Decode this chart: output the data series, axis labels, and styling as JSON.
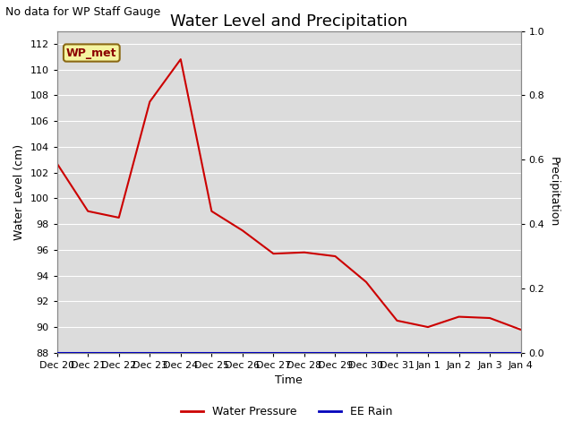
{
  "title": "Water Level and Precipitation",
  "subtitle": "No data for WP Staff Gauge",
  "xlabel": "Time",
  "ylabel_left": "Water Level (cm)",
  "ylabel_right": "Precipitation",
  "fig_facecolor": "#ffffff",
  "plot_bg_color": "#dcdcdc",
  "x_labels": [
    "Dec 20",
    "Dec 21",
    "Dec 22",
    "Dec 23",
    "Dec 24",
    "Dec 25",
    "Dec 26",
    "Dec 27",
    "Dec 28",
    "Dec 29",
    "Dec 30",
    "Dec 31",
    "Jan 1",
    "Jan 2",
    "Jan 3",
    "Jan 4"
  ],
  "x_values": [
    0,
    1,
    2,
    3,
    4,
    5,
    6,
    7,
    8,
    9,
    10,
    11,
    12,
    13,
    14,
    15
  ],
  "water_pressure_y": [
    102.7,
    99.0,
    98.5,
    107.5,
    110.8,
    99.0,
    97.5,
    95.7,
    95.8,
    95.5,
    93.5,
    90.5,
    90.0,
    90.8,
    90.7,
    89.8
  ],
  "ee_rain_y": [
    0,
    0,
    0,
    0,
    0,
    0,
    0,
    0,
    0,
    0,
    0,
    0,
    0,
    0,
    0,
    0
  ],
  "ylim_left": [
    88,
    113
  ],
  "ylim_right": [
    0.0,
    1.0
  ],
  "yticks_left": [
    88,
    90,
    92,
    94,
    96,
    98,
    100,
    102,
    104,
    106,
    108,
    110,
    112
  ],
  "yticks_right": [
    0.0,
    0.2,
    0.4,
    0.6,
    0.8,
    1.0
  ],
  "water_pressure_color": "#cc0000",
  "ee_rain_color": "#0000bb",
  "legend_wp_label": "Water Pressure",
  "legend_rain_label": "EE Rain",
  "wp_met_label": "WP_met",
  "wp_met_bg": "#f5f5a0",
  "wp_met_border": "#8b6914",
  "grid_color": "#ffffff",
  "title_fontsize": 13,
  "subtitle_fontsize": 9,
  "axis_label_fontsize": 9,
  "tick_fontsize": 8,
  "legend_fontsize": 9
}
